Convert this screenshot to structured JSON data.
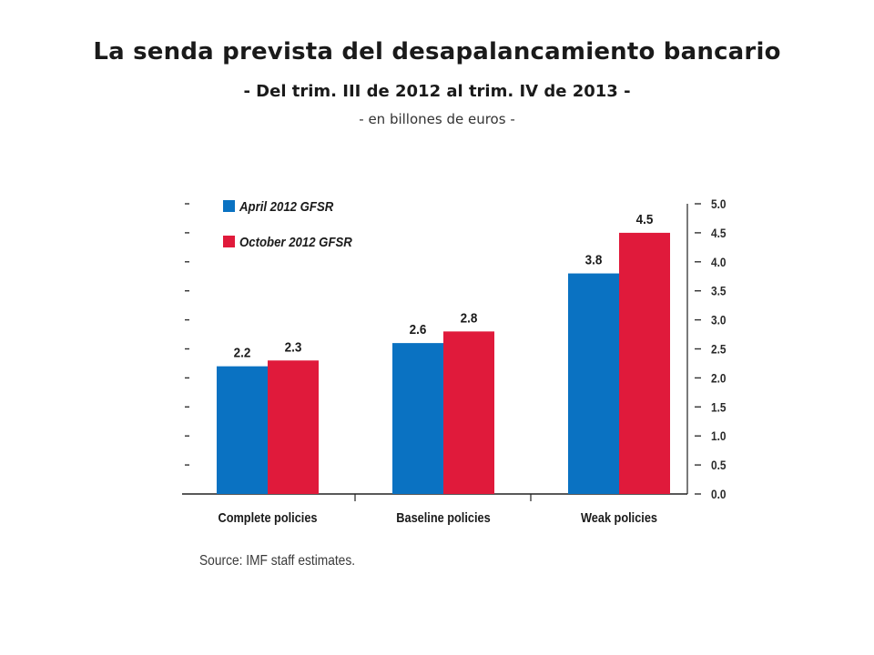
{
  "header": {
    "title": "La senda prevista del desapalancamiento bancario",
    "subtitle": "- Del trim. III de 2012 al trim. IV de 2013 -",
    "unit_note": "- en billones de euros -"
  },
  "chart_data": {
    "type": "bar",
    "categories": [
      "Complete policies",
      "Baseline policies",
      "Weak policies"
    ],
    "series": [
      {
        "name": "April 2012 GFSR",
        "values": [
          2.2,
          2.6,
          3.8
        ],
        "color": "#0a72c2"
      },
      {
        "name": "October 2012 GFSR",
        "values": [
          2.3,
          2.8,
          4.5
        ],
        "color": "#e01a3b"
      }
    ],
    "data_labels": [
      [
        "2.2",
        "2.6",
        "3.8"
      ],
      [
        "2.3",
        "2.8",
        "4.5"
      ]
    ],
    "ylim": [
      0,
      5.0
    ],
    "yticks": [
      0,
      0.5,
      1.0,
      1.5,
      2.0,
      2.5,
      3.0,
      3.5,
      4.0,
      4.5,
      5.0
    ],
    "ytick_labels": [
      "0.0",
      "0.5",
      "1.0",
      "1.5",
      "2.0",
      "2.5",
      "3.0",
      "3.5",
      "4.0",
      "4.5",
      "5.0"
    ],
    "y_axis_side": "right",
    "legend_position": "top-left",
    "grid": false
  },
  "footer": {
    "source": "Source: IMF staff estimates."
  }
}
